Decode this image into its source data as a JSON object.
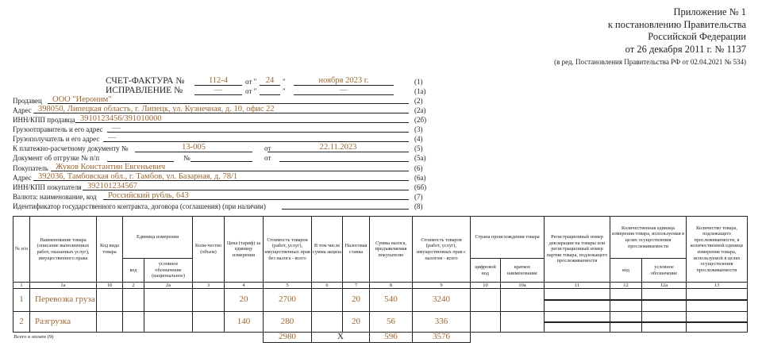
{
  "appendix": {
    "line1": "Приложение № 1",
    "line2": "к постановлению Правительства",
    "line3": "Российской Федерации",
    "line4": "от 26 декабря 2011 г. № 1137",
    "edition": "(в ред. Постановления Правительства РФ от 02.04.2021 № 534)"
  },
  "invoice": {
    "title": "СЧЕТ-ФАКТУРА №",
    "number": "112-4",
    "ot": "от \"",
    "day": "24",
    "q": "\"",
    "month_year": "ноября 2023 г.",
    "code": "(1)"
  },
  "correction": {
    "title": "ИСПРАВЛЕНИЕ №",
    "number": "—",
    "ot": "от \"",
    "day": "",
    "q": "\"",
    "date": "—",
    "code": "(1а)"
  },
  "fields": [
    {
      "label": "Продавец",
      "value": "ООО \"Иероним\"",
      "code": "(2)"
    },
    {
      "label": "Адрес",
      "value": "398050, Липецкая область, г. Липецк, ул. Кузнечная, д. 10, офис 22",
      "code": "(2а)"
    },
    {
      "label": "ИНН/КПП продавца",
      "value": "3910123456/391010000",
      "code": "(2б)"
    },
    {
      "label": "Грузоотправитель и его адрес",
      "value": "—",
      "code": "(3)"
    },
    {
      "label": "Грузополучатель и его адрес",
      "value": "—",
      "code": "(4)"
    },
    {
      "label": "Покупатель",
      "value": "Жуков Константин Евгеньевич",
      "code": "(6)"
    },
    {
      "label": "Адрес",
      "value": "392036, Тамбовская обл., г. Тамбов, ул. Базарная, д. 78/1",
      "code": "(6а)"
    },
    {
      "label": "ИНН/КПП покупателя",
      "value": "392101234567",
      "code": "(6б)"
    },
    {
      "label": "Валюта: наименование, код",
      "value": "Российский рубль, 643",
      "code": "(7)"
    },
    {
      "label": "Идентификатор государственного контракта, договора (соглашения) (при наличии)",
      "value": "",
      "code": "(8)"
    }
  ],
  "payment_doc": {
    "label": "К платежно-расчетному документу №",
    "number": "13-005",
    "ot": "от",
    "date": "22.11.2023",
    "code": "(5)"
  },
  "shipment_doc": {
    "label": "Документ об отгрузке № п/п",
    "no": "№",
    "ot": "от",
    "code": "(5а)"
  },
  "table": {
    "headers": {
      "c1": "№ п/п",
      "c1a": "Наименование товара (описание выполненных работ, оказанных услуг), имущественного права",
      "c1b": "Код вида товара",
      "unit": "Единица измерения",
      "unit_code": "код",
      "unit_name": "условное обозначение (национальное)",
      "c3": "Коли-чество (объем)",
      "c4": "Цена (тариф) за единицу измерения",
      "c5": "Стоимость товаров (работ, услуг), имущественных прав без налога - всего",
      "c6": "В том числе сумма акциза",
      "c7": "Налоговая ставка",
      "c8": "Сумма налога, предъявляемая покупателю",
      "c9": "Стоимость товаров (работ, услуг), имущественных прав с налогом - всего",
      "country": "Страна происхождения товара",
      "country_code": "цифровой код",
      "country_name": "краткое наименование",
      "c11": "Регистрационный номер декларации на товары или регистрационный номер партии товара, подлежащего прослеживаемости",
      "trace_unit": "Количественная единица измерения товара, используемая в целях осуществления прослеживаемости",
      "trace_code": "код",
      "trace_name": "условное обозначение",
      "c13": "Количество товара, подлежащего прослеживаемости, в количественной единице измерения товара, используемой в целях осуществления прослеживаемости"
    },
    "col_numbers": [
      "1",
      "1а",
      "1б",
      "2",
      "2а",
      "3",
      "4",
      "5",
      "6",
      "7",
      "8",
      "9",
      "10",
      "10а",
      "11",
      "12",
      "12а",
      "13"
    ],
    "rows": [
      {
        "n": "1",
        "name": "Перевозка груза",
        "price": "20",
        "cost": "2700",
        "rate": "20",
        "tax": "540",
        "total": "3240"
      },
      {
        "n": "2",
        "name": "Разгрузка",
        "price": "140",
        "cost": "280",
        "rate": "20",
        "tax": "56",
        "total": "336"
      }
    ],
    "totals": {
      "label": "Всего к оплате (9)",
      "cost": "2980",
      "excise": "X",
      "tax": "596",
      "total": "3576"
    }
  }
}
